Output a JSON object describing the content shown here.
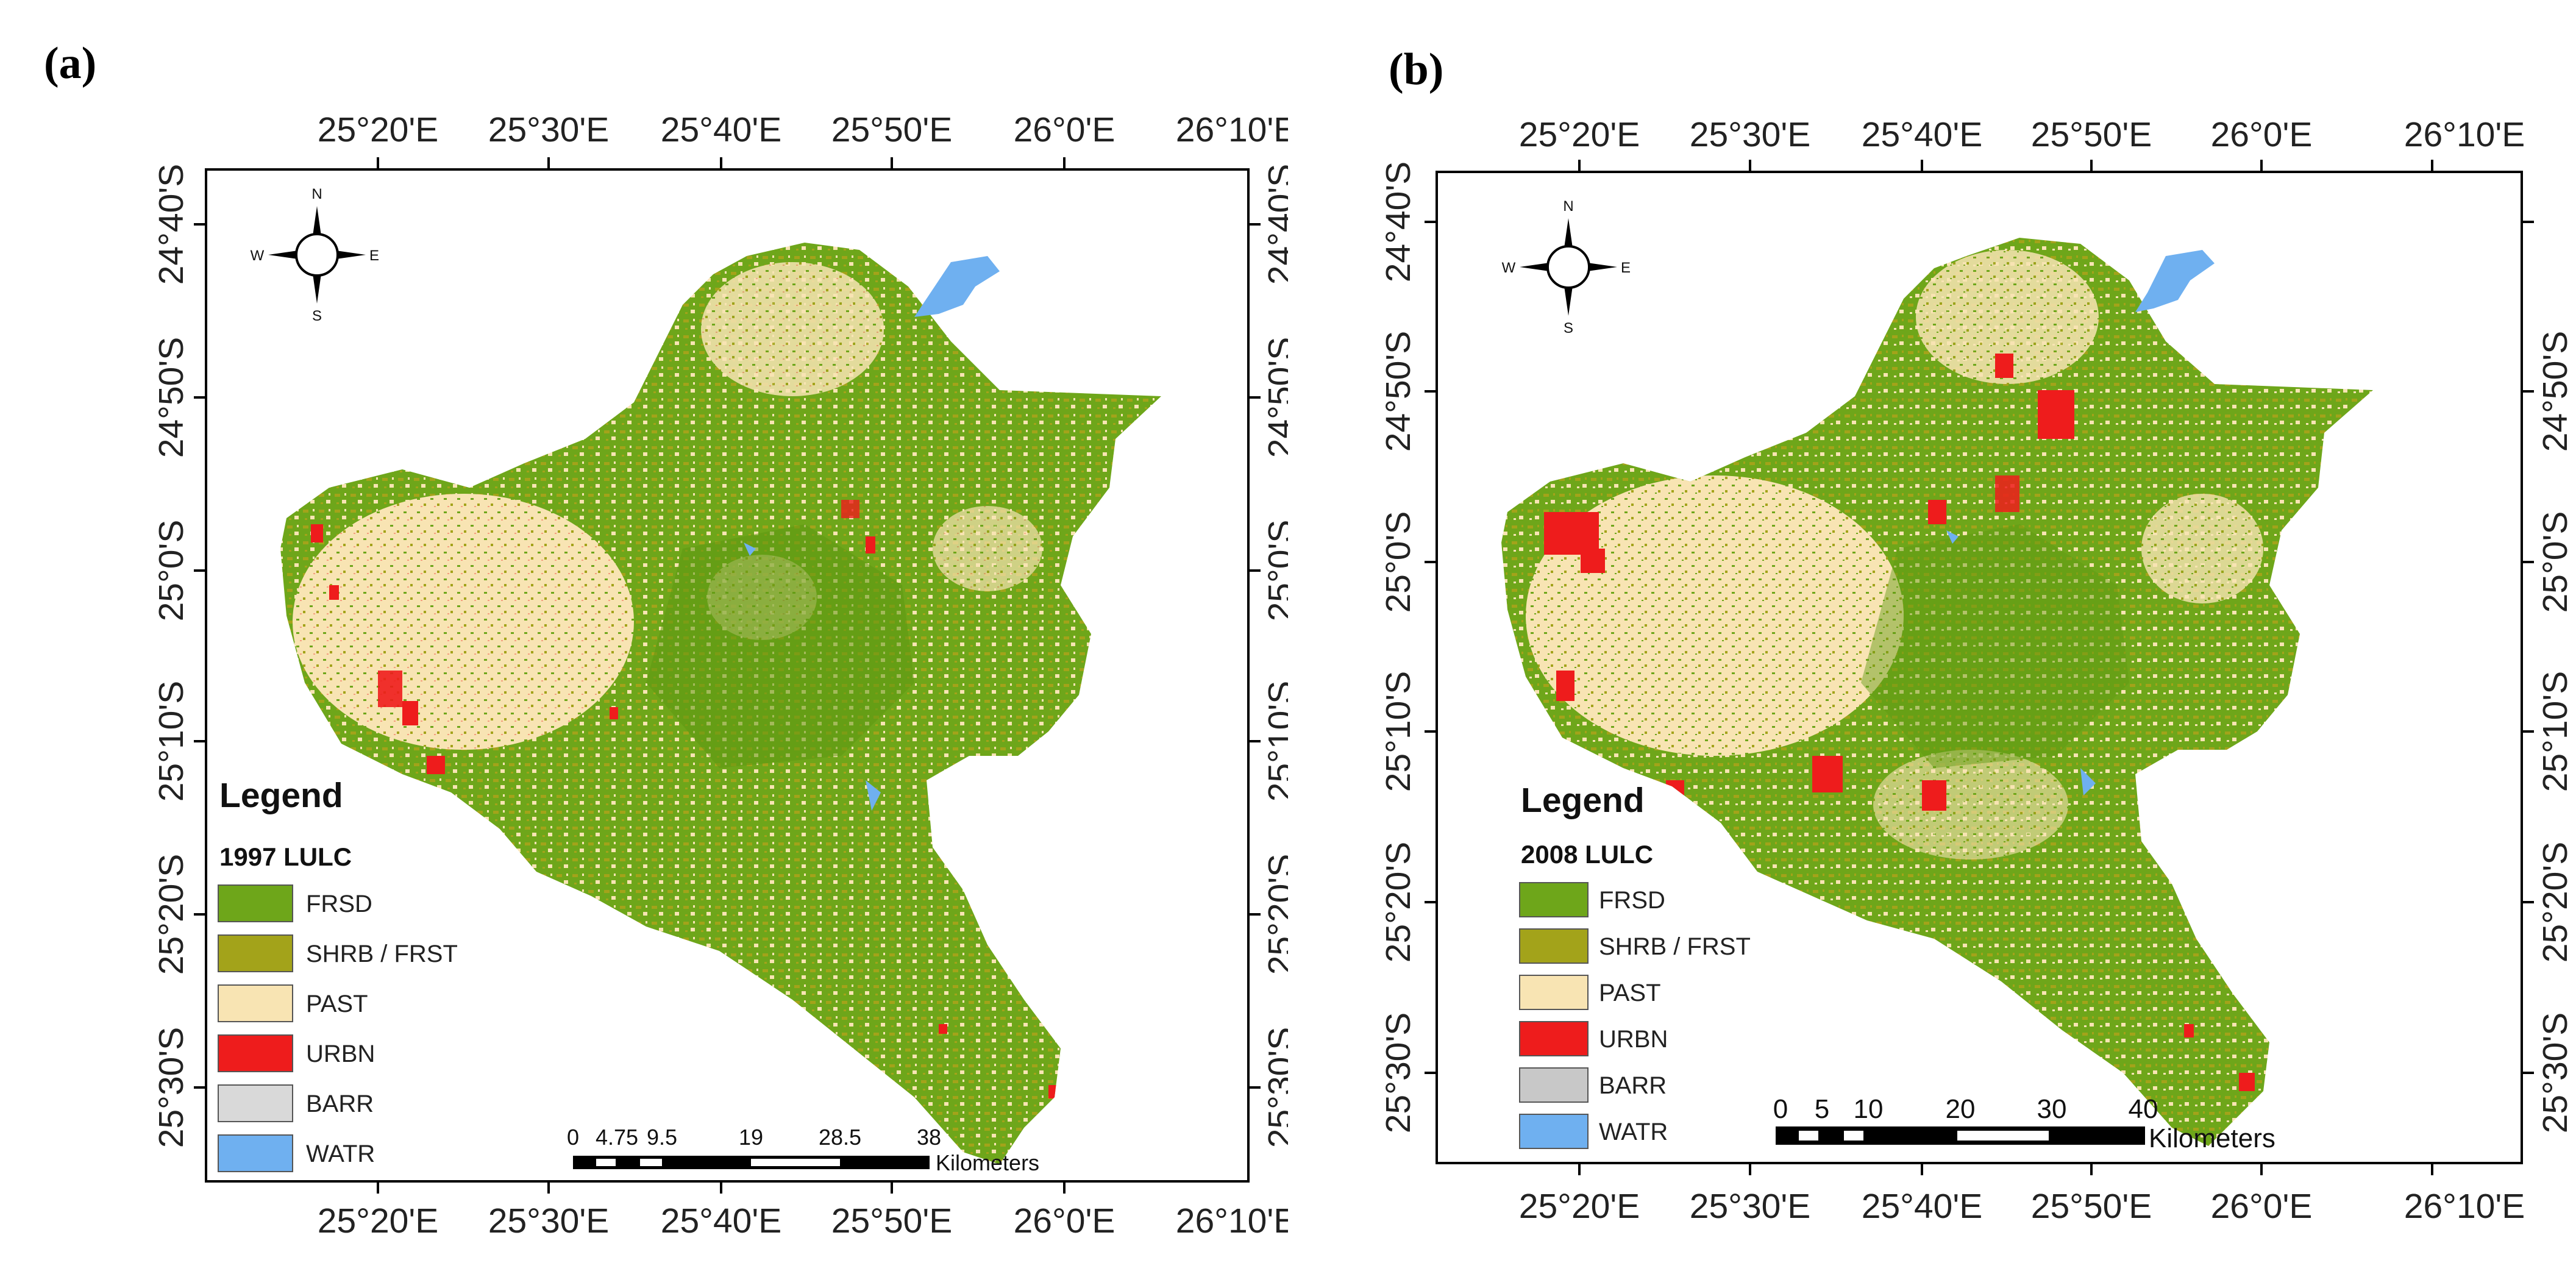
{
  "colors": {
    "FRSD": "#6ea61a",
    "SHRB_FRST": "#a3a31a",
    "PAST": "#f8e4b3",
    "URBN": "#ee1c1c",
    "BARR": "#d9d9d9",
    "WATR": "#6fb0f0",
    "frame": "#000000"
  },
  "panels": [
    {
      "label": "(a)",
      "top_ticks": [
        "25°20'E",
        "25°30'E",
        "25°40'E",
        "25°50'E",
        "26°0'E",
        "26°10'E"
      ],
      "bottom_ticks": [
        "25°20'E",
        "25°30'E",
        "25°40'E",
        "25°50'E",
        "26°0'E",
        "26°10'E"
      ],
      "left_ticks": [
        "24°40'S",
        "24°50'S",
        "25°0'S",
        "25°10'S",
        "25°20'S",
        "25°30'S"
      ],
      "right_ticks": [
        "24°40'S",
        "24°50'S",
        "25°0'S",
        "25°10'S",
        "25°20'S",
        "25°30'S"
      ],
      "compass": {
        "n": "N",
        "s": "S",
        "e": "E",
        "w": "W",
        "icon": "north-arrow-compass-icon"
      },
      "legend": {
        "title": "Legend",
        "subtitle": "1997 LULC",
        "items": [
          {
            "key": "FRSD",
            "label": "FRSD"
          },
          {
            "key": "SHRB_FRST",
            "label": "SHRB / FRST"
          },
          {
            "key": "PAST",
            "label": "PAST"
          },
          {
            "key": "URBN",
            "label": "URBN"
          },
          {
            "key": "BARR",
            "label": "BARR"
          },
          {
            "key": "WATR",
            "label": "WATR"
          }
        ]
      },
      "scale": {
        "ticks": [
          "0",
          "4.75",
          "9.5",
          "19",
          "28.5",
          "38"
        ],
        "unit": "Kilometers"
      }
    },
    {
      "label": "(b)",
      "top_ticks": [
        "25°20'E",
        "25°30'E",
        "25°40'E",
        "25°50'E",
        "26°0'E",
        "26°10'E"
      ],
      "bottom_ticks": [
        "25°20'E",
        "25°30'E",
        "25°40'E",
        "25°50'E",
        "26°0'E",
        "26°10'E"
      ],
      "left_ticks": [
        "24°40'S",
        "24°50'S",
        "25°0'S",
        "25°10'S",
        "25°20'S",
        "25°30'S"
      ],
      "right_ticks": [
        "24°50'S",
        "25°0'S",
        "25°10'S",
        "25°20'S",
        "25°30'S"
      ],
      "compass": {
        "n": "N",
        "s": "S",
        "e": "E",
        "w": "W",
        "icon": "north-arrow-compass-icon"
      },
      "legend": {
        "title": "Legend",
        "subtitle": "2008 LULC",
        "items": [
          {
            "key": "FRSD",
            "label": "FRSD"
          },
          {
            "key": "SHRB_FRST",
            "label": "SHRB / FRST"
          },
          {
            "key": "PAST",
            "label": "PAST"
          },
          {
            "key": "URBN",
            "label": "URBN"
          },
          {
            "key": "BARR",
            "label": "BARR"
          },
          {
            "key": "WATR",
            "label": "WATR"
          }
        ]
      },
      "scale": {
        "ticks": [
          "0",
          "5",
          "10",
          "20",
          "30",
          "40"
        ],
        "unit": "Kilometers"
      }
    }
  ]
}
